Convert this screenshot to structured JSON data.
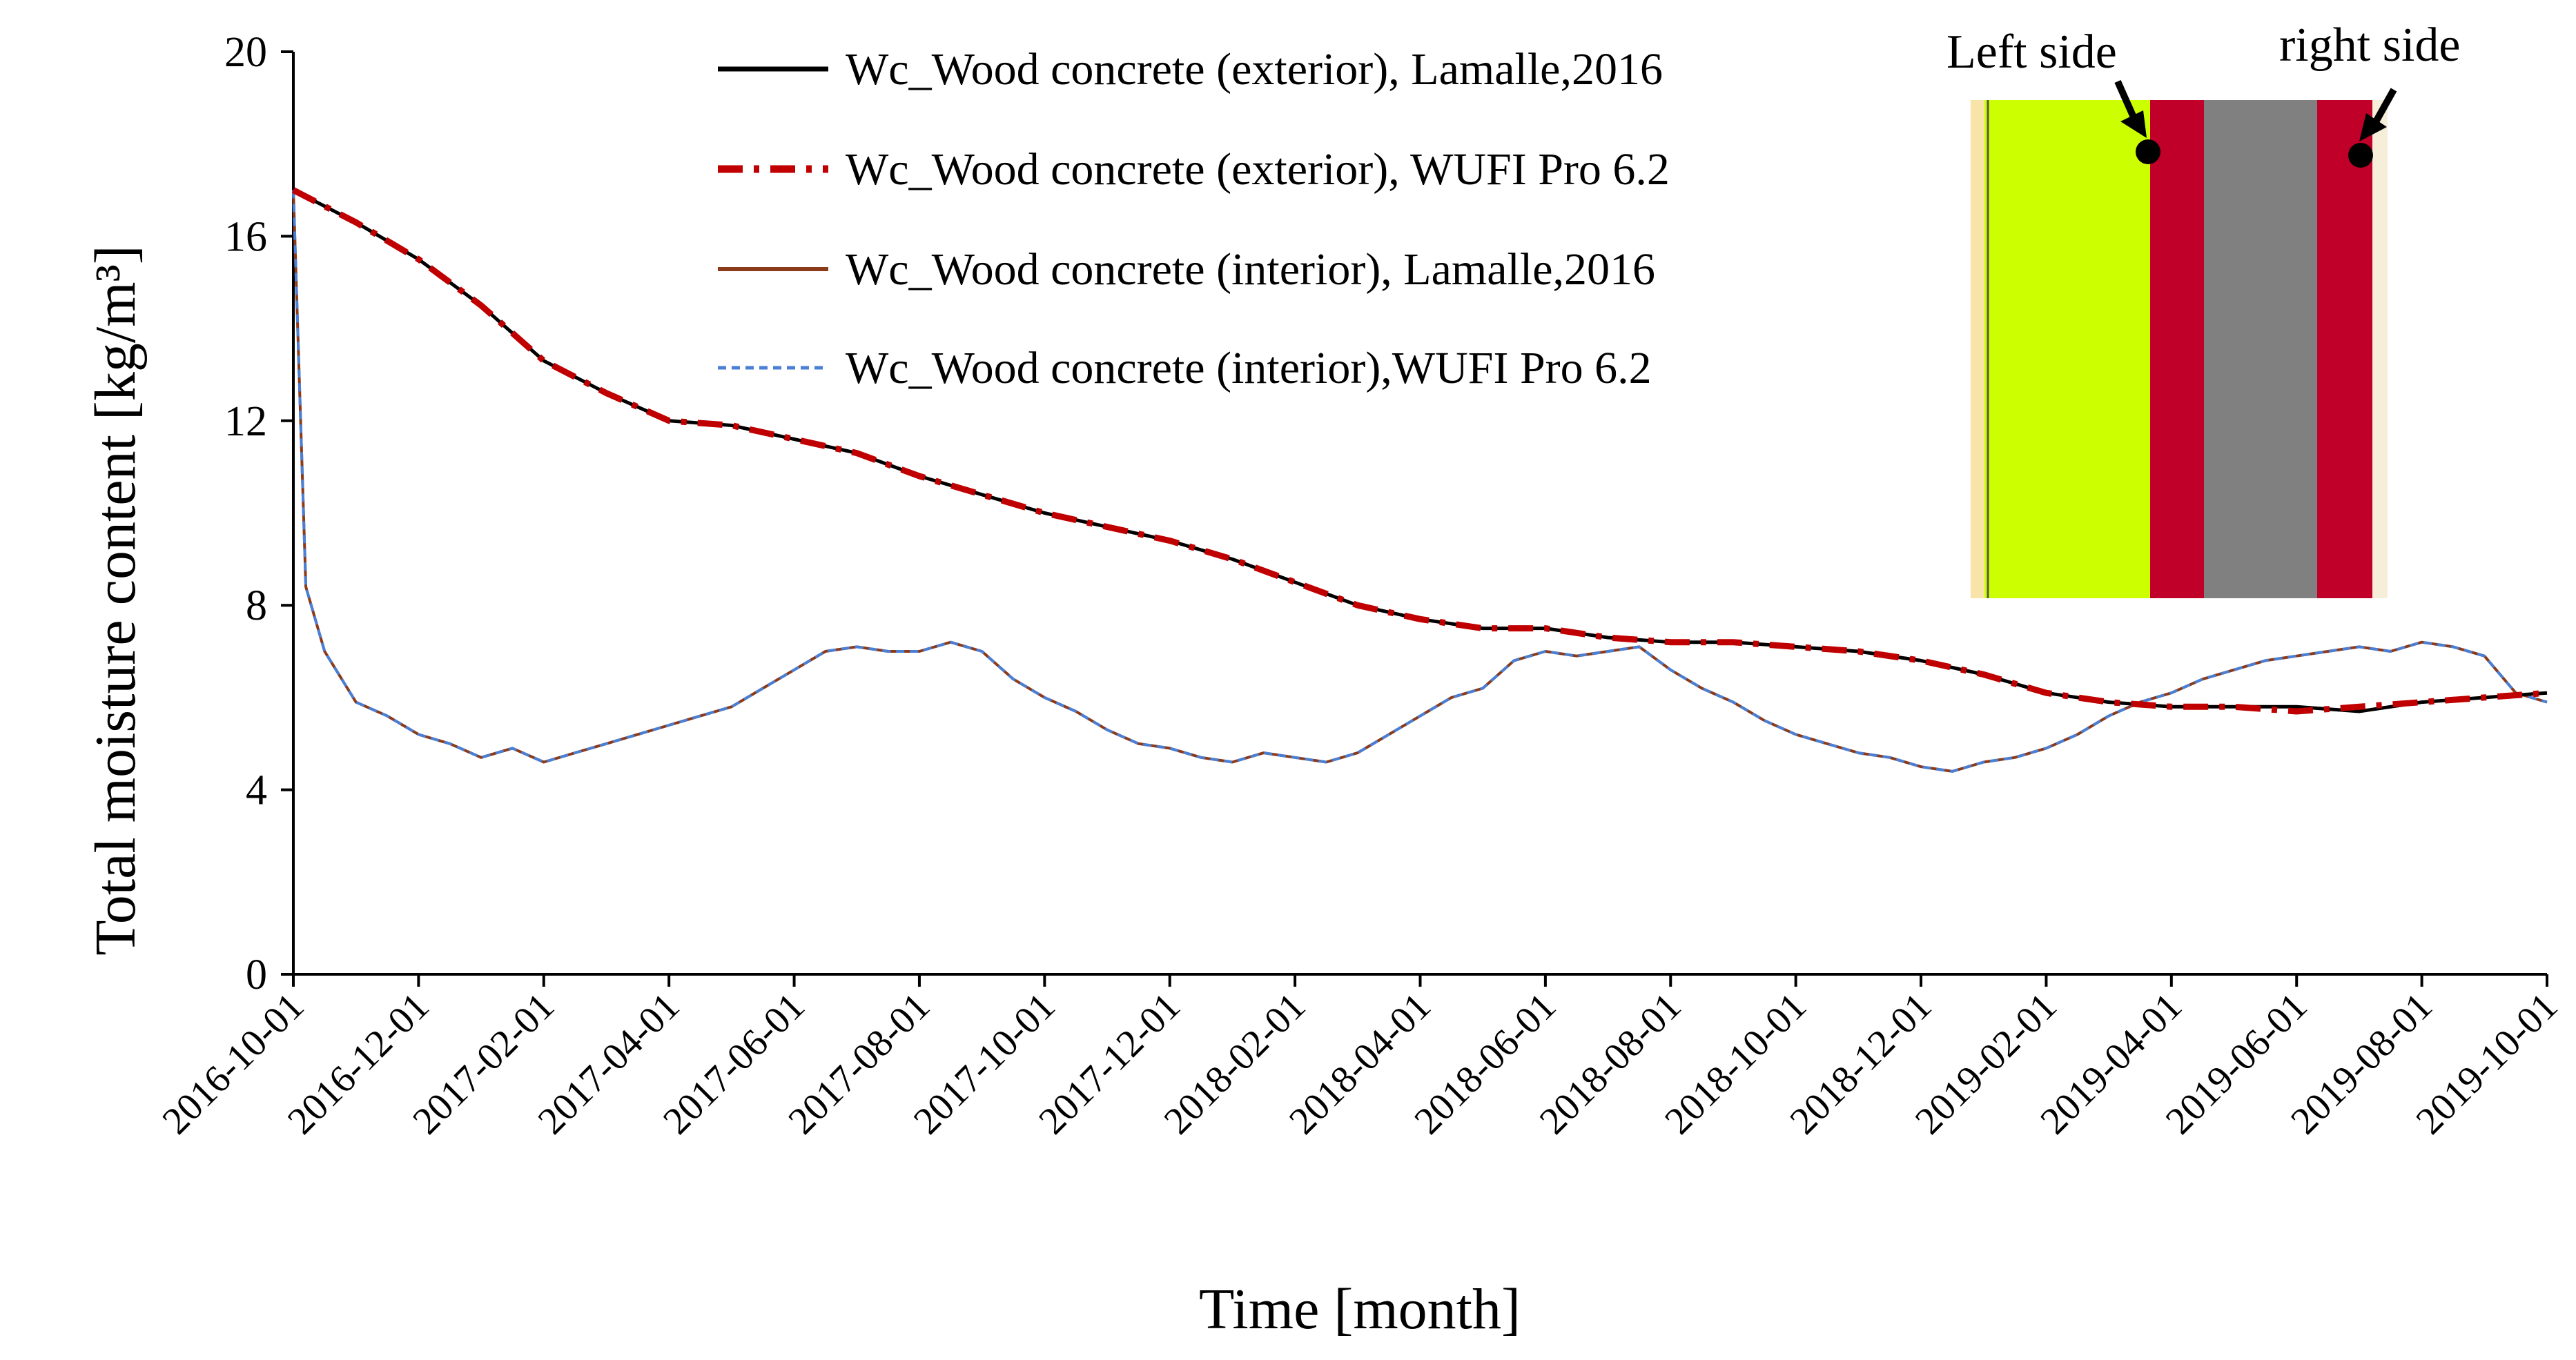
{
  "chart_data": {
    "type": "line",
    "title": "",
    "xlabel": "Time [month]",
    "ylabel": "Total moisture content [kg/m³]",
    "ylim": [
      0,
      20
    ],
    "yticks": [
      "0",
      "4",
      "8",
      "12",
      "16",
      "20"
    ],
    "x_dates": [
      "2016-10-01",
      "2016-12-01",
      "2017-02-01",
      "2017-04-01",
      "2017-06-01",
      "2017-08-01",
      "2017-10-01",
      "2017-12-01",
      "2018-02-01",
      "2018-04-01",
      "2018-06-01",
      "2018-08-01",
      "2018-10-01",
      "2018-12-01",
      "2019-02-01",
      "2019-04-01",
      "2019-06-01",
      "2019-08-01",
      "2019-10-01"
    ],
    "xlim_months": [
      0,
      36
    ],
    "series": [
      {
        "name": "Wc_Wood concrete (exterior), Lamalle,2016",
        "color": "#000000",
        "style": "solid",
        "x": [
          0,
          1,
          2,
          3,
          4,
          5,
          6,
          7,
          8,
          9,
          10,
          11,
          12,
          13,
          14,
          15,
          16,
          17,
          18,
          19,
          20,
          21,
          22,
          23,
          24,
          25,
          26,
          27,
          28,
          29,
          30,
          31,
          32,
          33,
          34,
          35,
          36
        ],
        "y": [
          17.0,
          16.3,
          15.5,
          14.5,
          13.3,
          12.6,
          12.0,
          11.9,
          11.6,
          11.3,
          10.8,
          10.4,
          10.0,
          9.7,
          9.4,
          9.0,
          8.5,
          8.0,
          7.7,
          7.5,
          7.5,
          7.3,
          7.2,
          7.2,
          7.1,
          7.0,
          6.8,
          6.5,
          6.1,
          5.9,
          5.8,
          5.8,
          5.8,
          5.7,
          5.9,
          6.0,
          6.1
        ]
      },
      {
        "name": "Wc_Wood concrete (exterior), WUFI Pro 6.2",
        "color": "#c00000",
        "style": "dashdot",
        "x": [
          0,
          1,
          2,
          3,
          4,
          5,
          6,
          7,
          8,
          9,
          10,
          11,
          12,
          13,
          14,
          15,
          16,
          17,
          18,
          19,
          20,
          21,
          22,
          23,
          24,
          25,
          26,
          27,
          28,
          29,
          30,
          31,
          32,
          33,
          34,
          35,
          36
        ],
        "y": [
          17.0,
          16.3,
          15.5,
          14.5,
          13.3,
          12.6,
          12.0,
          11.9,
          11.6,
          11.3,
          10.8,
          10.4,
          10.0,
          9.7,
          9.4,
          9.0,
          8.5,
          8.0,
          7.7,
          7.5,
          7.5,
          7.3,
          7.2,
          7.2,
          7.1,
          7.0,
          6.8,
          6.5,
          6.1,
          5.9,
          5.8,
          5.8,
          5.7,
          5.8,
          5.9,
          6.0,
          6.1
        ]
      },
      {
        "name": "Wc_Wood concrete (interior), Lamalle,2016",
        "color": "#8b3a1a",
        "style": "solid",
        "x": [
          0,
          0.2,
          0.5,
          1,
          1.5,
          2,
          2.5,
          3,
          3.5,
          4,
          4.5,
          5,
          5.5,
          6,
          6.5,
          7,
          7.5,
          8,
          8.5,
          9,
          9.5,
          10,
          10.5,
          11,
          11.5,
          12,
          12.5,
          13,
          13.5,
          14,
          14.5,
          15,
          15.5,
          16,
          16.5,
          17,
          17.5,
          18,
          18.5,
          19,
          19.5,
          20,
          20.5,
          21,
          21.5,
          22,
          22.5,
          23,
          23.5,
          24,
          24.5,
          25,
          25.5,
          26,
          26.5,
          27,
          27.5,
          28,
          28.5,
          29,
          29.5,
          30,
          30.5,
          31,
          31.5,
          32,
          32.5,
          33,
          33.5,
          34,
          34.5,
          35,
          35.5,
          36
        ],
        "y": [
          17.0,
          8.4,
          7.0,
          5.9,
          5.6,
          5.2,
          5.0,
          4.7,
          4.9,
          4.6,
          4.8,
          5.0,
          5.2,
          5.4,
          5.6,
          5.8,
          6.2,
          6.6,
          7.0,
          7.1,
          7.0,
          7.0,
          7.2,
          7.0,
          6.4,
          6.0,
          5.7,
          5.3,
          5.0,
          4.9,
          4.7,
          4.6,
          4.8,
          4.7,
          4.6,
          4.8,
          5.2,
          5.6,
          6.0,
          6.2,
          6.8,
          7.0,
          6.9,
          7.0,
          7.1,
          6.6,
          6.2,
          5.9,
          5.5,
          5.2,
          5.0,
          4.8,
          4.7,
          4.5,
          4.4,
          4.6,
          4.7,
          4.9,
          5.2,
          5.6,
          5.9,
          6.1,
          6.4,
          6.6,
          6.8,
          6.9,
          7.0,
          7.1,
          7.0,
          7.2,
          7.1,
          6.9,
          6.1,
          5.9
        ]
      },
      {
        "name": "Wc_Wood concrete (interior),WUFI Pro 6.2",
        "color": "#4a7fd4",
        "style": "dashed",
        "x": [
          0,
          0.2,
          0.5,
          1,
          1.5,
          2,
          2.5,
          3,
          3.5,
          4,
          4.5,
          5,
          5.5,
          6,
          6.5,
          7,
          7.5,
          8,
          8.5,
          9,
          9.5,
          10,
          10.5,
          11,
          11.5,
          12,
          12.5,
          13,
          13.5,
          14,
          14.5,
          15,
          15.5,
          16,
          16.5,
          17,
          17.5,
          18,
          18.5,
          19,
          19.5,
          20,
          20.5,
          21,
          21.5,
          22,
          22.5,
          23,
          23.5,
          24,
          24.5,
          25,
          25.5,
          26,
          26.5,
          27,
          27.5,
          28,
          28.5,
          29,
          29.5,
          30,
          30.5,
          31,
          31.5,
          32,
          32.5,
          33,
          33.5,
          34,
          34.5,
          35,
          35.5,
          36
        ],
        "y": [
          17.0,
          8.4,
          7.0,
          5.9,
          5.6,
          5.2,
          5.0,
          4.7,
          4.9,
          4.6,
          4.8,
          5.0,
          5.2,
          5.4,
          5.6,
          5.8,
          6.2,
          6.6,
          7.0,
          7.1,
          7.0,
          7.0,
          7.2,
          7.0,
          6.4,
          6.0,
          5.7,
          5.3,
          5.0,
          4.9,
          4.7,
          4.6,
          4.8,
          4.7,
          4.6,
          4.8,
          5.2,
          5.6,
          6.0,
          6.2,
          6.8,
          7.0,
          6.9,
          7.0,
          7.1,
          6.6,
          6.2,
          5.9,
          5.5,
          5.2,
          5.0,
          4.8,
          4.7,
          4.5,
          4.4,
          4.6,
          4.7,
          4.9,
          5.2,
          5.6,
          5.9,
          6.1,
          6.4,
          6.6,
          6.8,
          6.9,
          7.0,
          7.1,
          7.0,
          7.2,
          7.1,
          6.9,
          6.1,
          5.9
        ]
      }
    ],
    "legend_position": "top"
  },
  "inset": {
    "left_label": "Left side",
    "right_label": "right side",
    "layer_colors": [
      "#f8e3a8",
      "#ccff00",
      "#c00028",
      "#808080",
      "#c00028",
      "#f6eed8"
    ]
  }
}
